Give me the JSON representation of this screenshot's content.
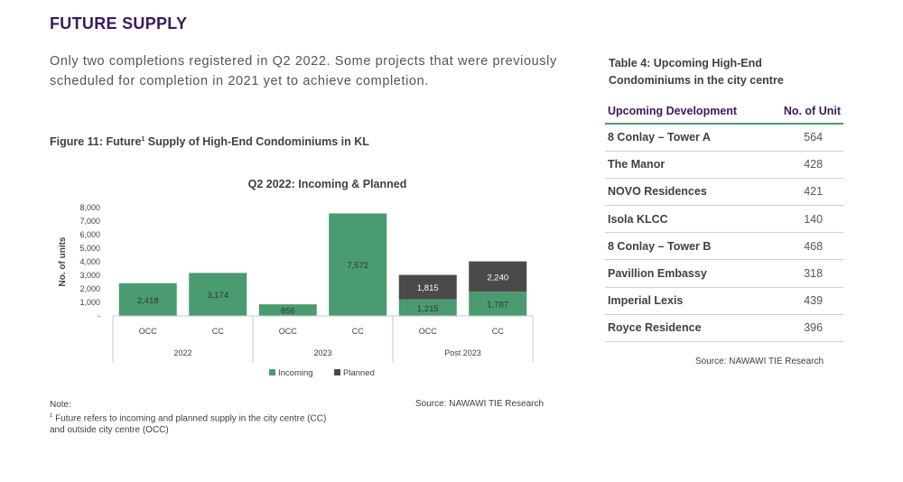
{
  "section_title": "FUTURE SUPPLY",
  "intro_text": "Only two completions registered in Q2 2022. Some projects that were previously scheduled for completion in 2021 yet to achieve completion.",
  "figure": {
    "title_prefix": "Figure 11: Future",
    "title_sup": "1",
    "title_suffix": " Supply of High-End Condominiums in KL",
    "source": "Source: NAWAWI TIE Research"
  },
  "chart_data": {
    "type": "bar",
    "stacked": true,
    "title": "Q2 2022: Incoming & Planned",
    "ylabel": "No. of units",
    "xlabel": "",
    "ylim": [
      0,
      8000
    ],
    "yticks": [
      "8,000",
      "7,000",
      "6,000",
      "5,000",
      "4,000",
      "3,000",
      "2,000",
      "1,000",
      "-"
    ],
    "ytick_values": [
      8000,
      7000,
      6000,
      5000,
      4000,
      3000,
      2000,
      1000,
      0
    ],
    "categories": [
      "OCC",
      "CC",
      "OCC",
      "CC",
      "OCC",
      "CC"
    ],
    "groups": [
      "2022",
      "2023",
      "Post 2023"
    ],
    "series": [
      {
        "name": "Incoming",
        "color": "#4a9b6f",
        "values": [
          2418,
          3174,
          856,
          7572,
          1215,
          1787
        ],
        "labels": [
          "2,418",
          "3,174",
          "856",
          "7,572",
          "1,215",
          "1,787"
        ]
      },
      {
        "name": "Planned",
        "color": "#4a4a4a",
        "values": [
          0,
          0,
          0,
          0,
          1815,
          2240
        ],
        "labels": [
          "",
          "",
          "",
          "",
          "1,815",
          "2,240"
        ]
      }
    ],
    "legend": [
      "Incoming",
      "Planned"
    ],
    "legend_position": "bottom"
  },
  "note": {
    "heading": "Note:",
    "footnote_sup": "1",
    "footnote_text": " Future refers to incoming and planned supply in the city centre (CC) and outside city centre (OCC)"
  },
  "table": {
    "title": "Table 4: Upcoming High-End Condominiums in the city centre",
    "headers": [
      "Upcoming Development",
      "No. of Unit"
    ],
    "rows": [
      [
        "8 Conlay – Tower A",
        "564"
      ],
      [
        "The Manor",
        "428"
      ],
      [
        "NOVO Residences",
        "421"
      ],
      [
        "Isola KLCC",
        "140"
      ],
      [
        "8 Conlay – Tower B",
        "468"
      ],
      [
        "Pavillion Embassy",
        "318"
      ],
      [
        "Imperial Lexis",
        "439"
      ],
      [
        "Royce Residence",
        "396"
      ]
    ],
    "source": "Source: NAWAWI TIE Research"
  }
}
